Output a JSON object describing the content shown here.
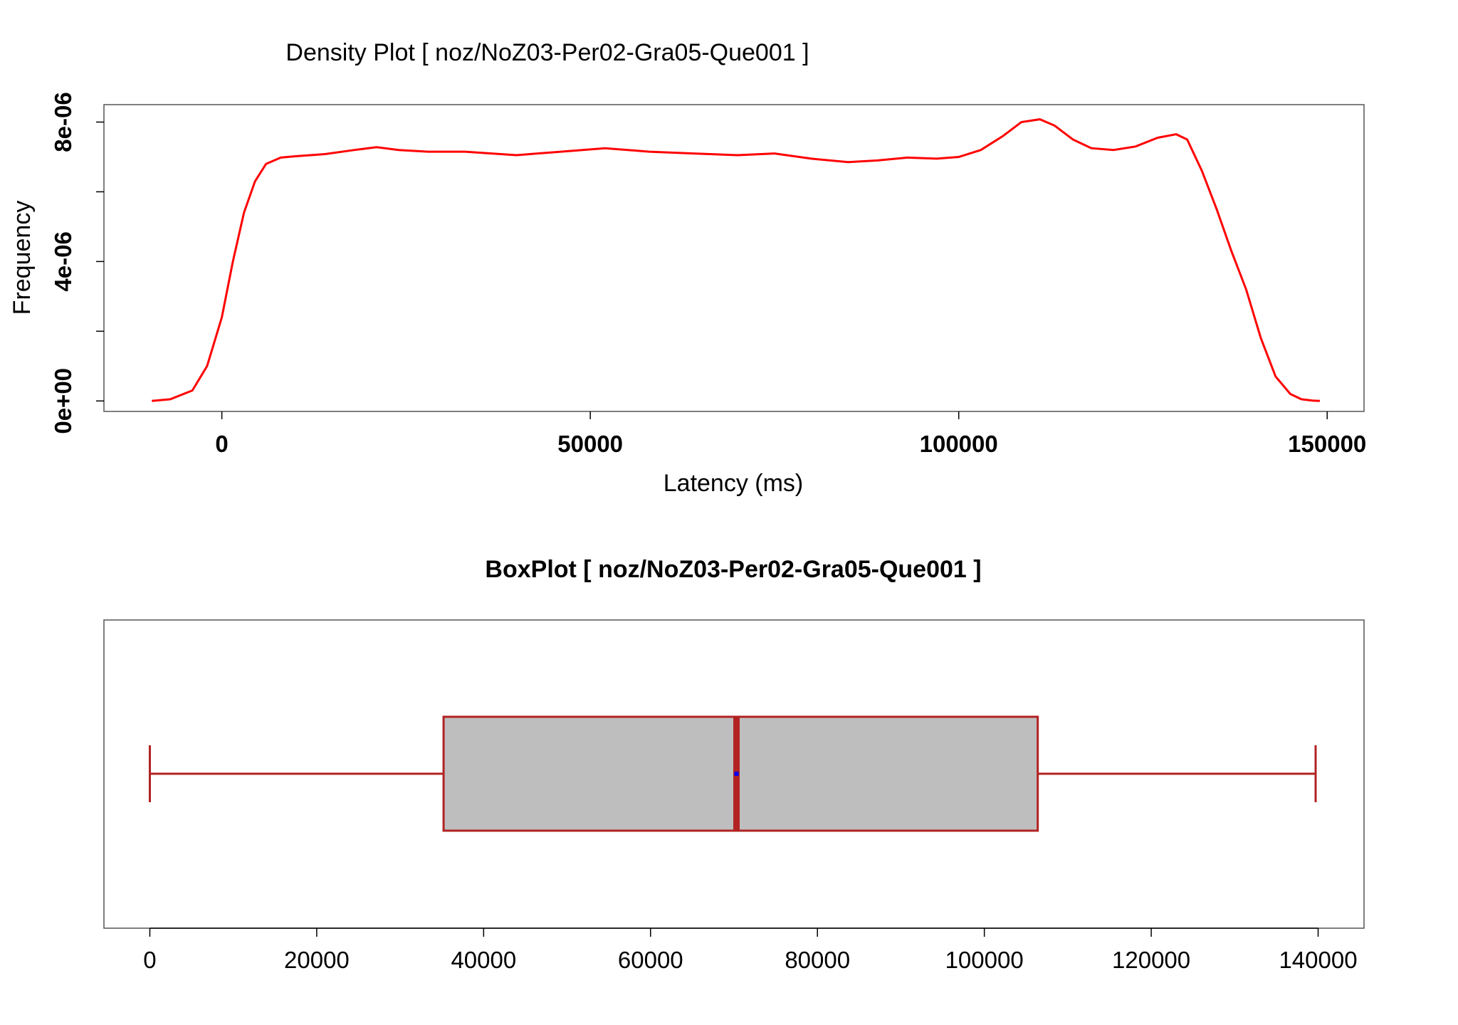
{
  "chart_data": [
    {
      "type": "line",
      "title": "Density Plot [ noz/NoZ03-Per02-Gra05-Que001 ]",
      "xlabel": "Latency (ms)",
      "ylabel": "Frequency",
      "xlim": [
        -16000,
        155000
      ],
      "ylim": [
        -3e-07,
        8.5e-06
      ],
      "x_ticks": [
        0,
        50000,
        100000,
        150000
      ],
      "x_tick_labels": [
        "0",
        "50000",
        "100000",
        "150000"
      ],
      "y_ticks": [
        0,
        2e-06,
        4e-06,
        6e-06,
        8e-06
      ],
      "y_tick_labels": [
        "0e+00",
        "",
        "4e-06",
        "",
        "8e-06"
      ],
      "grid": false,
      "line_color": "#ff0000",
      "series": [
        {
          "x": [
            -9500,
            -7000,
            -4000,
            -2000,
            0,
            1500,
            3000,
            4500,
            6000,
            8000,
            10000,
            14000,
            18000,
            21000,
            24000,
            28000,
            33000,
            40000,
            46000,
            52000,
            58000,
            64000,
            70000,
            75000,
            80000,
            85000,
            89000,
            93000,
            97000,
            100000,
            103000,
            106000,
            108500,
            111000,
            113000,
            115500,
            118000,
            121000,
            124000,
            127000,
            129500,
            131000,
            133000,
            135000,
            137000,
            139000,
            141000,
            143000,
            145000,
            146500,
            148000,
            149000
          ],
          "y": [
            0,
            5e-08,
            3e-07,
            1e-06,
            2.4e-06,
            4e-06,
            5.4e-06,
            6.3e-06,
            6.8e-06,
            6.98e-06,
            7.02e-06,
            7.08e-06,
            7.2e-06,
            7.28e-06,
            7.2e-06,
            7.15e-06,
            7.15e-06,
            7.05e-06,
            7.15e-06,
            7.25e-06,
            7.15e-06,
            7.1e-06,
            7.05e-06,
            7.1e-06,
            6.95e-06,
            6.85e-06,
            6.9e-06,
            6.98e-06,
            6.95e-06,
            7e-06,
            7.2e-06,
            7.6e-06,
            8e-06,
            8.08e-06,
            7.9e-06,
            7.5e-06,
            7.25e-06,
            7.2e-06,
            7.3e-06,
            7.55e-06,
            7.65e-06,
            7.5e-06,
            6.6e-06,
            5.5e-06,
            4.3e-06,
            3.2e-06,
            1.8e-06,
            7e-07,
            2e-07,
            5e-08,
            1e-08,
            0
          ]
        }
      ]
    },
    {
      "type": "box",
      "title": "BoxPlot [ noz/NoZ03-Per02-Gra05-Que001 ]",
      "xlim": [
        -5500,
        145500
      ],
      "x_ticks": [
        0,
        20000,
        40000,
        60000,
        80000,
        100000,
        120000,
        140000
      ],
      "x_tick_labels": [
        "0",
        "20000",
        "40000",
        "60000",
        "80000",
        "100000",
        "120000",
        "140000"
      ],
      "whisker_min": 0,
      "q1": 35200,
      "median": 70300,
      "mean": 70300,
      "q3": 106400,
      "whisker_max": 139700,
      "box_fill": "#bebebe",
      "box_stroke": "#b22222",
      "mean_color": "#0000ff"
    }
  ]
}
